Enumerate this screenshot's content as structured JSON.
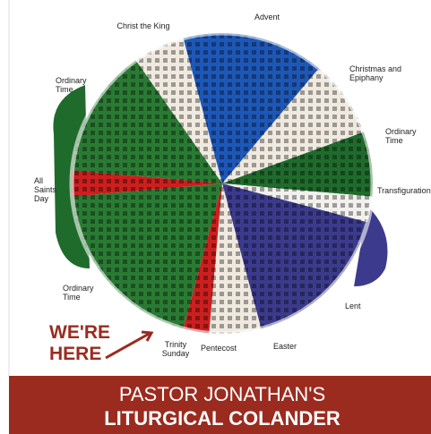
{
  "labels": [
    "Christ the King",
    "Advent",
    "Christmas and Epiphany",
    "Ordinary Time",
    "Transfiguration",
    "Lent",
    "Easter",
    "Pentecost",
    "Trinity Sunday",
    "Ordinary Time",
    "All Saints Day",
    "Ordinary Time"
  ],
  "callout": "WE'RE HERE",
  "footer": {
    "line1": "PASTOR JONATHAN'S",
    "line2": "LITURGICAL COLANDER"
  }
}
